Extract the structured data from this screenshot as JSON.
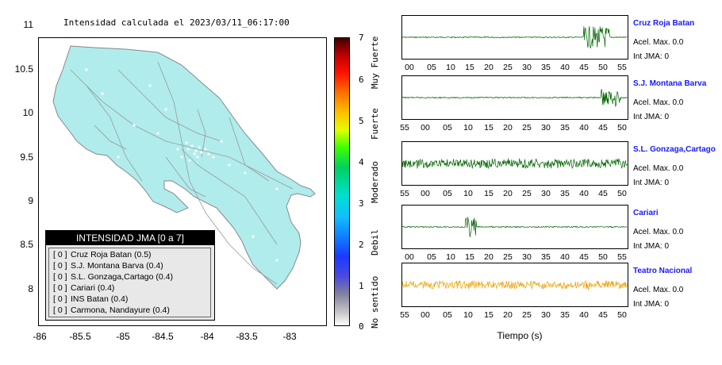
{
  "map": {
    "title": "Intensidad calculada el 2023/03/11_06:17:00",
    "y_ticks": [
      "11",
      "10.5",
      "10",
      "9.5",
      "9",
      "8.5",
      "8"
    ],
    "x_ticks": [
      "-86",
      "-85.5",
      "-85",
      "-84.5",
      "-84",
      "-83.5",
      "-83"
    ],
    "land_color": "#b0ecec",
    "border_color": "#888888"
  },
  "colorbar": {
    "ticks": [
      "7",
      "6",
      "5",
      "4",
      "3",
      "2",
      "1",
      "0"
    ],
    "categories": [
      "Muy Fuerte",
      "Fuerte",
      "Moderado",
      "Debil",
      "No sentido"
    ]
  },
  "legend": {
    "title": "INTENSIDAD JMA [0 a 7]",
    "items": [
      {
        "level": "[ 0 ]",
        "label": "Cruz Roja Batan (0.5)"
      },
      {
        "level": "[ 0 ]",
        "label": "S.J. Montana Barva (0.4)"
      },
      {
        "level": "[ 0 ]",
        "label": "S.L. Gonzaga,Cartago (0.4)"
      },
      {
        "level": "[ 0 ]",
        "label": "Cariari (0.4)"
      },
      {
        "level": "[ 0 ]",
        "label": "INS Batan (0.4)"
      },
      {
        "level": "[ 0 ]",
        "label": "Carmona, Nandayure (0.4)"
      }
    ]
  },
  "stations": [
    {
      "name": "Cruz Roja Batan",
      "acel": "Acel. Max. 0.0",
      "int": "Int JMA: 0",
      "color": "#006400",
      "ticks": [
        "00",
        "05",
        "10",
        "15",
        "20",
        "25",
        "30",
        "35",
        "40",
        "45",
        "50",
        "55"
      ]
    },
    {
      "name": "S.J. Montana Barva",
      "acel": "Acel. Max. 0.0",
      "int": "Int JMA: 0",
      "color": "#006400",
      "ticks": [
        "55",
        "00",
        "05",
        "10",
        "15",
        "20",
        "25",
        "30",
        "35",
        "40",
        "45",
        "50"
      ]
    },
    {
      "name": "S.L. Gonzaga,Cartago",
      "acel": "Acel. Max. 0.0",
      "int": "Int JMA: 0",
      "color": "#006400",
      "ticks": [
        "55",
        "00",
        "05",
        "10",
        "15",
        "20",
        "25",
        "30",
        "35",
        "40",
        "45",
        "50"
      ]
    },
    {
      "name": "Cariari",
      "acel": "Acel. Max. 0.0",
      "int": "Int JMA: 0",
      "color": "#006400",
      "ticks": [
        "00",
        "05",
        "10",
        "15",
        "20",
        "25",
        "30",
        "35",
        "40",
        "45",
        "50",
        "55"
      ]
    },
    {
      "name": "Teatro Nacional",
      "acel": "Acel. Max. 0.0",
      "int": "Int JMA: 0",
      "color": "#f0a000",
      "ticks": [
        "55",
        "00",
        "05",
        "10",
        "15",
        "20",
        "25",
        "30",
        "35",
        "40",
        "45",
        "50"
      ]
    }
  ],
  "waveforms": {
    "xlabel": "Tiempo (s)"
  }
}
